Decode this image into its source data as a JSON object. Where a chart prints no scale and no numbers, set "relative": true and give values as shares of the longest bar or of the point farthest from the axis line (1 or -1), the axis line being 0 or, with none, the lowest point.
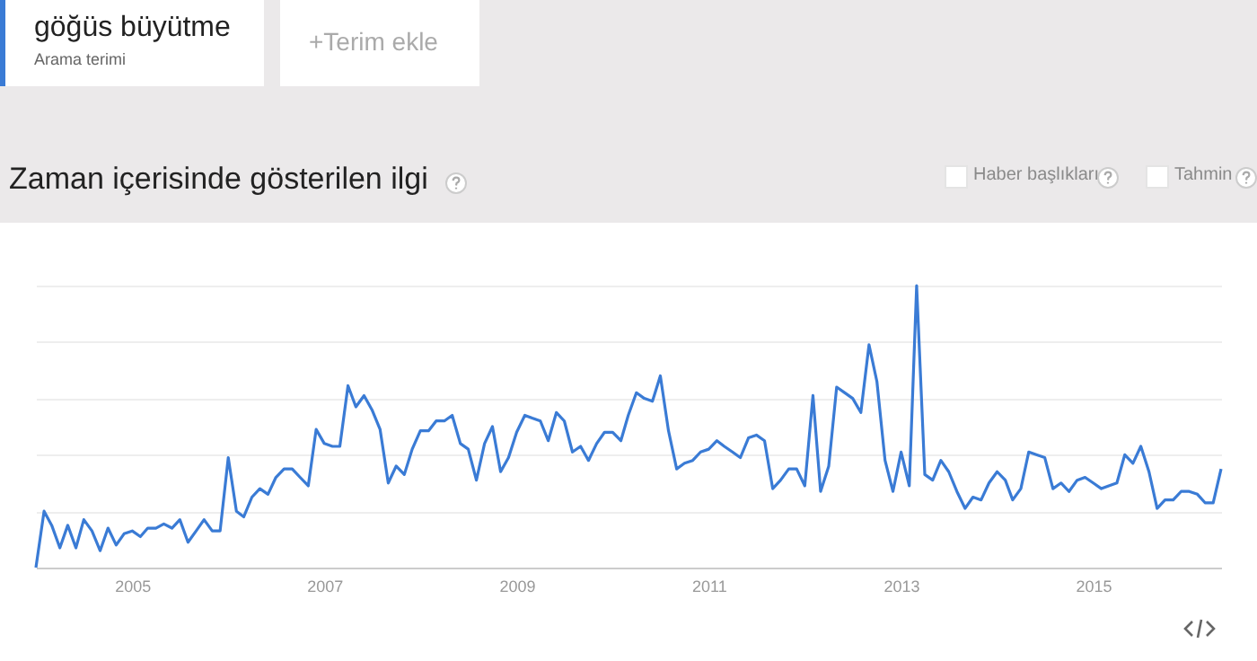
{
  "chart_data": {
    "type": "line",
    "title": "Zaman içerisinde gösterilen ilgi",
    "annotations": [
      "Arama terimi",
      "+Terim ekle",
      "Haber başlıkları",
      "Tahmin"
    ],
    "relative": true,
    "grid": "y",
    "legend": "top left",
    "marker": "none",
    "line_style": "solid",
    "x": [
      "2004-01",
      "2004-02",
      "2004-03",
      "2004-04",
      "2004-05",
      "2004-06",
      "2004-07",
      "2004-08",
      "2004-09",
      "2004-10",
      "2004-11",
      "2004-12",
      "2005-01",
      "2005-02",
      "2005-03",
      "2005-04",
      "2005-05",
      "2005-06",
      "2005-07",
      "2005-08",
      "2005-09",
      "2005-10",
      "2005-11",
      "2005-12",
      "2006-01",
      "2006-02",
      "2006-03",
      "2006-04",
      "2006-05",
      "2006-06",
      "2006-07",
      "2006-08",
      "2006-09",
      "2006-10",
      "2006-11",
      "2006-12",
      "2007-01",
      "2007-02",
      "2007-03",
      "2007-04",
      "2007-05",
      "2007-06",
      "2007-07",
      "2007-08",
      "2007-09",
      "2007-10",
      "2007-11",
      "2007-12",
      "2008-01",
      "2008-02",
      "2008-03",
      "2008-04",
      "2008-05",
      "2008-06",
      "2008-07",
      "2008-08",
      "2008-09",
      "2008-10",
      "2008-11",
      "2008-12",
      "2009-01",
      "2009-02",
      "2009-03",
      "2009-04",
      "2009-05",
      "2009-06",
      "2009-07",
      "2009-08",
      "2009-09",
      "2009-10",
      "2009-11",
      "2009-12",
      "2010-01",
      "2010-02",
      "2010-03",
      "2010-04",
      "2010-05",
      "2010-06",
      "2010-07",
      "2010-08",
      "2010-09",
      "2010-10",
      "2010-11",
      "2010-12",
      "2011-01",
      "2011-02",
      "2011-03",
      "2011-04",
      "2011-05",
      "2011-06",
      "2011-07",
      "2011-08",
      "2011-09",
      "2011-10",
      "2011-11",
      "2011-12",
      "2012-01",
      "2012-02",
      "2012-03",
      "2012-04",
      "2012-05",
      "2012-06",
      "2012-07",
      "2012-08",
      "2012-09",
      "2012-10",
      "2012-11",
      "2012-12",
      "2013-01",
      "2013-02",
      "2013-03",
      "2013-04",
      "2013-05",
      "2013-06",
      "2013-07",
      "2013-08",
      "2013-09",
      "2013-10",
      "2013-11",
      "2013-12",
      "2014-01",
      "2014-02",
      "2014-03",
      "2014-04",
      "2014-05",
      "2014-06",
      "2014-07",
      "2014-08",
      "2014-09",
      "2014-10",
      "2014-11",
      "2014-12",
      "2015-01",
      "2015-02",
      "2015-03",
      "2015-04",
      "2015-05",
      "2015-06",
      "2015-07",
      "2015-08",
      "2015-09",
      "2015-10",
      "2015-11",
      "2015-12",
      "2016-01",
      "2016-02",
      "2016-03",
      "2016-04",
      "2016-05"
    ],
    "xlim": [
      "2004-01",
      "2016-05"
    ],
    "xticks": [
      "2005",
      "2007",
      "2009",
      "2011",
      "2013",
      "2015"
    ],
    "series": [
      {
        "name": "göğüs büyütme",
        "color": "#3a7bd5",
        "values": [
          0,
          0.2,
          0.15,
          0.07,
          0.15,
          0.07,
          0.17,
          0.13,
          0.06,
          0.14,
          0.08,
          0.12,
          0.13,
          0.11,
          0.14,
          0.14,
          0.155,
          0.14,
          0.17,
          0.09,
          0.13,
          0.17,
          0.13,
          0.13,
          0.39,
          0.2,
          0.18,
          0.25,
          0.28,
          0.26,
          0.32,
          0.35,
          0.35,
          0.32,
          0.29,
          0.49,
          0.44,
          0.43,
          0.43,
          0.645,
          0.57,
          0.61,
          0.56,
          0.49,
          0.3,
          0.36,
          0.33,
          0.42,
          0.485,
          0.485,
          0.52,
          0.52,
          0.54,
          0.44,
          0.42,
          0.31,
          0.44,
          0.5,
          0.34,
          0.39,
          0.48,
          0.54,
          0.53,
          0.52,
          0.45,
          0.55,
          0.52,
          0.41,
          0.43,
          0.38,
          0.44,
          0.48,
          0.48,
          0.45,
          0.54,
          0.62,
          0.6,
          0.59,
          0.68,
          0.485,
          0.35,
          0.37,
          0.38,
          0.41,
          0.42,
          0.45,
          0.43,
          0.41,
          0.39,
          0.46,
          0.47,
          0.45,
          0.28,
          0.31,
          0.35,
          0.35,
          0.29,
          0.61,
          0.27,
          0.36,
          0.64,
          0.62,
          0.6,
          0.55,
          0.79,
          0.66,
          0.38,
          0.27,
          0.41,
          0.29,
          1.0,
          0.33,
          0.31,
          0.38,
          0.34,
          0.27,
          0.21,
          0.25,
          0.24,
          0.3,
          0.34,
          0.31,
          0.24,
          0.28,
          0.41,
          0.4,
          0.39,
          0.28,
          0.3,
          0.27,
          0.31,
          0.32,
          0.3,
          0.28,
          0.29,
          0.3,
          0.4,
          0.37,
          0.43,
          0.34,
          0.21,
          0.24,
          0.24,
          0.27,
          0.27,
          0.26,
          0.23,
          0.23,
          0.35
        ]
      }
    ]
  }
}
